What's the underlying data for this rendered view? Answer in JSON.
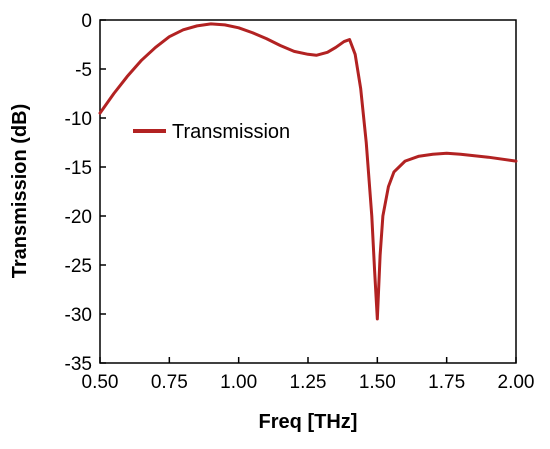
{
  "chart_data": {
    "type": "line",
    "title": "",
    "xlabel": "Freq [THz]",
    "ylabel": "Transmission (dB)",
    "xlim": [
      0.5,
      2.0
    ],
    "ylim": [
      -35,
      0
    ],
    "xticks": [
      0.5,
      0.75,
      1.0,
      1.25,
      1.5,
      1.75,
      2.0
    ],
    "xtick_labels": [
      "0.50",
      "0.75",
      "1.00",
      "1.25",
      "1.50",
      "1.75",
      "2.00"
    ],
    "yticks": [
      0,
      -5,
      -10,
      -15,
      -20,
      -25,
      -30,
      -35
    ],
    "ytick_labels": [
      "0",
      "-5",
      "-10",
      "-15",
      "-20",
      "-25",
      "-30",
      "-35"
    ],
    "grid": false,
    "legend": {
      "position": "middle-left"
    },
    "series": [
      {
        "name": "Transmission",
        "color": "#b22222",
        "x": [
          0.5,
          0.55,
          0.6,
          0.65,
          0.7,
          0.75,
          0.8,
          0.85,
          0.9,
          0.95,
          1.0,
          1.05,
          1.1,
          1.15,
          1.2,
          1.25,
          1.28,
          1.32,
          1.35,
          1.38,
          1.4,
          1.42,
          1.44,
          1.46,
          1.48,
          1.49,
          1.5,
          1.51,
          1.52,
          1.54,
          1.56,
          1.6,
          1.65,
          1.7,
          1.75,
          1.8,
          1.9,
          2.0
        ],
        "y": [
          -9.5,
          -7.5,
          -5.7,
          -4.1,
          -2.8,
          -1.7,
          -1.0,
          -0.6,
          -0.4,
          -0.5,
          -0.8,
          -1.3,
          -1.9,
          -2.6,
          -3.2,
          -3.5,
          -3.6,
          -3.3,
          -2.8,
          -2.2,
          -2.0,
          -3.5,
          -7.0,
          -12.5,
          -20.0,
          -25.5,
          -30.5,
          -24.0,
          -20.0,
          -17.0,
          -15.5,
          -14.4,
          -13.9,
          -13.7,
          -13.6,
          -13.7,
          -14.0,
          -14.4
        ]
      }
    ]
  }
}
